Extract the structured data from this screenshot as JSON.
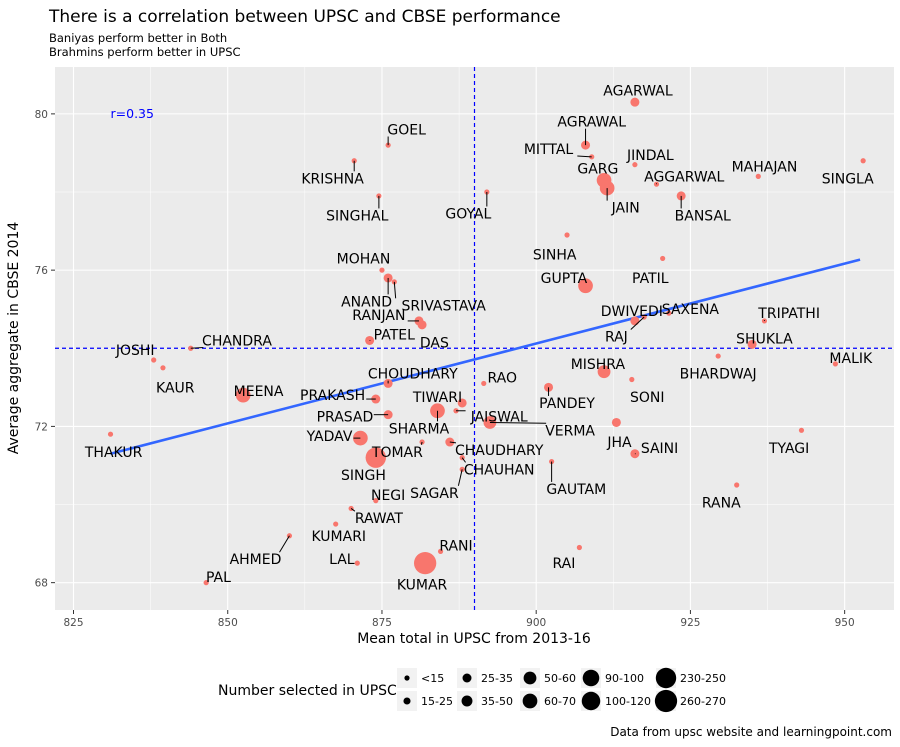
{
  "chart_data": {
    "type": "scatter",
    "title": "There is a correlation between UPSC and CBSE performance",
    "subtitle_lines": [
      "Baniyas perform better in Both",
      "Brahmins perform better in UPSC"
    ],
    "xlabel": "Mean total in UPSC from 2013-16",
    "ylabel": "Average aggregate in CBSE 2014",
    "xlim": [
      822,
      958
    ],
    "ylim": [
      67.3,
      81.2
    ],
    "xticks": [
      825,
      850,
      875,
      900,
      925,
      950
    ],
    "yticks": [
      68,
      72,
      76,
      80
    ],
    "x_ref_line": 890,
    "y_ref_line": 74.0,
    "correlation_label": "r=0.35",
    "trend_line": {
      "x": [
        831,
        952.5
      ],
      "y": [
        71.3,
        76.27
      ]
    },
    "colors": {
      "point": "#f8766d",
      "trend": "#3366ff",
      "ref": "#0000ff",
      "panel": "#ebebeb",
      "grid": "#ffffff",
      "r_label": "#0000ff"
    },
    "legend": {
      "title": "Number selected in UPSC",
      "sizes": [
        {
          "label": "<15",
          "size": 1
        },
        {
          "label": "15-25",
          "size": 2
        },
        {
          "label": "25-35",
          "size": 3
        },
        {
          "label": "35-50",
          "size": 4
        },
        {
          "label": "50-60",
          "size": 5
        },
        {
          "label": "60-70",
          "size": 6
        },
        {
          "label": "90-100",
          "size": 7
        },
        {
          "label": "100-120",
          "size": 8
        },
        {
          "label": "230-250",
          "size": 9
        },
        {
          "label": "260-270",
          "size": 10
        }
      ]
    },
    "points": [
      {
        "name": "AGARWAL",
        "x": 916,
        "y": 80.3,
        "size": 3,
        "lx": 916.5,
        "ly": 80.6
      },
      {
        "name": "AGRAWAL",
        "x": 908,
        "y": 79.2,
        "size": 3,
        "lx": 909,
        "ly": 79.8
      },
      {
        "name": "MITTAL",
        "x": 909,
        "y": 78.9,
        "size": 1,
        "lx": 902,
        "ly": 79.1
      },
      {
        "name": "GOEL",
        "x": 876,
        "y": 79.2,
        "size": 1,
        "lx": 879,
        "ly": 79.6
      },
      {
        "name": "JINDAL",
        "x": 916,
        "y": 78.7,
        "size": 1,
        "lx": 918.5,
        "ly": 78.95
      },
      {
        "name": "KRISHNA",
        "x": 870.5,
        "y": 78.8,
        "size": 1,
        "lx": 867,
        "ly": 78.35
      },
      {
        "name": "GARG",
        "x": 911,
        "y": 78.3,
        "size": 6,
        "lx": 910,
        "ly": 78.6
      },
      {
        "name": "AGGARWAL",
        "x": 919.5,
        "y": 78.2,
        "size": 1,
        "lx": 924,
        "ly": 78.4
      },
      {
        "name": "MAHAJAN",
        "x": 936,
        "y": 78.4,
        "size": 1,
        "lx": 937,
        "ly": 78.65
      },
      {
        "name": "SINGLA",
        "x": 953,
        "y": 78.8,
        "size": 1,
        "lx": 950.5,
        "ly": 78.35
      },
      {
        "name": "JAIN",
        "x": 911.5,
        "y": 78.1,
        "size": 6,
        "lx": 914.5,
        "ly": 77.6
      },
      {
        "name": "SINGHAL",
        "x": 874.5,
        "y": 77.9,
        "size": 1,
        "lx": 871,
        "ly": 77.4
      },
      {
        "name": "GOYAL",
        "x": 892,
        "y": 78.0,
        "size": 1,
        "lx": 889,
        "ly": 77.45
      },
      {
        "name": "BANSAL",
        "x": 923.5,
        "y": 77.9,
        "size": 3,
        "lx": 927,
        "ly": 77.4
      },
      {
        "name": "SINHA",
        "x": 905,
        "y": 76.9,
        "size": 1,
        "lx": 903,
        "ly": 76.4
      },
      {
        "name": "PATIL",
        "x": 920.5,
        "y": 76.3,
        "size": 1,
        "lx": 918.5,
        "ly": 75.8
      },
      {
        "name": "MOHAN",
        "x": 875,
        "y": 76.0,
        "size": 1,
        "lx": 872,
        "ly": 76.3
      },
      {
        "name": "ANAND",
        "x": 876,
        "y": 75.8,
        "size": 3,
        "lx": 872.5,
        "ly": 75.2
      },
      {
        "name": "SRIVASTAVA",
        "x": 877,
        "y": 75.7,
        "size": 1,
        "lx": 885,
        "ly": 75.1
      },
      {
        "name": "GUPTA",
        "x": 908,
        "y": 75.6,
        "size": 6,
        "lx": 904.5,
        "ly": 75.8
      },
      {
        "name": "DWIVEDI",
        "x": 916,
        "y": 74.7,
        "size": 3,
        "lx": 915.5,
        "ly": 74.95
      },
      {
        "name": "SAXENA",
        "x": 921.5,
        "y": 74.9,
        "size": 1,
        "lx": 925,
        "ly": 75.0
      },
      {
        "name": "RANJAN",
        "x": 881,
        "y": 74.7,
        "size": 3,
        "lx": 874.5,
        "ly": 74.85
      },
      {
        "name": "PATEL",
        "x": 873,
        "y": 74.2,
        "size": 3,
        "lx": 877,
        "ly": 74.35
      },
      {
        "name": "DAS",
        "x": 881.5,
        "y": 74.6,
        "size": 3,
        "lx": 883.5,
        "ly": 74.15
      },
      {
        "name": "RAJ",
        "x": 917.5,
        "y": 74.8,
        "size": 1,
        "lx": 913,
        "ly": 74.3
      },
      {
        "name": "TRIPATHI",
        "x": 937,
        "y": 74.7,
        "size": 1,
        "lx": 941,
        "ly": 74.9
      },
      {
        "name": "CHANDRA",
        "x": 844,
        "y": 74.0,
        "size": 1,
        "lx": 851.5,
        "ly": 74.2
      },
      {
        "name": "SHUKLA",
        "x": 935,
        "y": 74.1,
        "size": 3,
        "lx": 937,
        "ly": 74.25
      },
      {
        "name": "JOSHI",
        "x": 838,
        "y": 73.7,
        "size": 1,
        "lx": 835,
        "ly": 73.95
      },
      {
        "name": "KAUR",
        "x": 839.5,
        "y": 73.5,
        "size": 1,
        "lx": 841.5,
        "ly": 73.0
      },
      {
        "name": "BHARDWAJ",
        "x": 929.5,
        "y": 73.8,
        "size": 1,
        "lx": 929.5,
        "ly": 73.35
      },
      {
        "name": "MALIK",
        "x": 948.5,
        "y": 73.6,
        "size": 1,
        "lx": 951,
        "ly": 73.75
      },
      {
        "name": "MISHRA",
        "x": 911,
        "y": 73.4,
        "size": 5,
        "lx": 910,
        "ly": 73.6
      },
      {
        "name": "CHOUDHARY",
        "x": 876,
        "y": 73.1,
        "size": 3,
        "lx": 880,
        "ly": 73.35
      },
      {
        "name": "RAO",
        "x": 891.5,
        "y": 73.1,
        "size": 1,
        "lx": 894.5,
        "ly": 73.25
      },
      {
        "name": "SONI",
        "x": 915.5,
        "y": 73.2,
        "size": 1,
        "lx": 918,
        "ly": 72.75
      },
      {
        "name": "MEENA",
        "x": 852.5,
        "y": 72.8,
        "size": 6,
        "lx": 855,
        "ly": 72.9
      },
      {
        "name": "PRAKASH",
        "x": 874,
        "y": 72.7,
        "size": 3,
        "lx": 867,
        "ly": 72.8
      },
      {
        "name": "TIWARI",
        "x": 888,
        "y": 72.6,
        "size": 3,
        "lx": 884,
        "ly": 72.75
      },
      {
        "name": "PANDEY",
        "x": 902,
        "y": 73.0,
        "size": 3,
        "lx": 905,
        "ly": 72.6
      },
      {
        "name": "PRASAD",
        "x": 876,
        "y": 72.3,
        "size": 3,
        "lx": 869,
        "ly": 72.25
      },
      {
        "name": "SHARMA",
        "x": 884,
        "y": 72.4,
        "size": 6,
        "lx": 881,
        "ly": 71.95
      },
      {
        "name": "JAISWAL",
        "x": 887,
        "y": 72.4,
        "size": 1,
        "lx": 894,
        "ly": 72.25
      },
      {
        "name": "VERMA",
        "x": 892.5,
        "y": 72.1,
        "size": 5,
        "lx": 905.5,
        "ly": 71.9
      },
      {
        "name": "JHA",
        "x": 913,
        "y": 72.1,
        "size": 3,
        "lx": 913.5,
        "ly": 71.6
      },
      {
        "name": "SAINI",
        "x": 916,
        "y": 71.3,
        "size": 3,
        "lx": 920,
        "ly": 71.45
      },
      {
        "name": "TYAGI",
        "x": 943,
        "y": 71.9,
        "size": 1,
        "lx": 941,
        "ly": 71.45
      },
      {
        "name": "THAKUR",
        "x": 831,
        "y": 71.8,
        "size": 1,
        "lx": 831.5,
        "ly": 71.35
      },
      {
        "name": "YADAV",
        "x": 871.5,
        "y": 71.7,
        "size": 6,
        "lx": 866.5,
        "ly": 71.75
      },
      {
        "name": "TOMAR",
        "x": 881.5,
        "y": 71.6,
        "size": 1,
        "lx": 877.5,
        "ly": 71.35
      },
      {
        "name": "CHAUDHARY",
        "x": 886,
        "y": 71.6,
        "size": 3,
        "lx": 894,
        "ly": 71.4
      },
      {
        "name": "SINGH",
        "x": 874,
        "y": 71.2,
        "size": 9,
        "lx": 872,
        "ly": 70.75
      },
      {
        "name": "CHAUHAN",
        "x": 888,
        "y": 71.2,
        "size": 1,
        "lx": 894,
        "ly": 70.9
      },
      {
        "name": "GAUTAM",
        "x": 902.5,
        "y": 71.1,
        "size": 1,
        "lx": 906.5,
        "ly": 70.4
      },
      {
        "name": "SAGAR",
        "x": 888,
        "y": 70.9,
        "size": 1,
        "lx": 883.5,
        "ly": 70.3
      },
      {
        "name": "RANA",
        "x": 932.5,
        "y": 70.5,
        "size": 1,
        "lx": 930,
        "ly": 70.05
      },
      {
        "name": "NEGI",
        "x": 874,
        "y": 70.1,
        "size": 1,
        "lx": 876,
        "ly": 70.25
      },
      {
        "name": "RAWAT",
        "x": 870,
        "y": 69.9,
        "size": 1,
        "lx": 874.5,
        "ly": 69.65
      },
      {
        "name": "KUMARI",
        "x": 867.5,
        "y": 69.5,
        "size": 1,
        "lx": 868,
        "ly": 69.2
      },
      {
        "name": "AHMED",
        "x": 860,
        "y": 69.2,
        "size": 1,
        "lx": 854.5,
        "ly": 68.6
      },
      {
        "name": "RANI",
        "x": 884.5,
        "y": 68.8,
        "size": 1,
        "lx": 887,
        "ly": 68.95
      },
      {
        "name": "RAI",
        "x": 907,
        "y": 68.9,
        "size": 1,
        "lx": 904.5,
        "ly": 68.5
      },
      {
        "name": "LAL",
        "x": 871,
        "y": 68.5,
        "size": 1,
        "lx": 868.5,
        "ly": 68.6
      },
      {
        "name": "KUMAR",
        "x": 882,
        "y": 68.5,
        "size": 10,
        "lx": 881.5,
        "ly": 67.95
      },
      {
        "name": "PAL",
        "x": 846.5,
        "y": 68.0,
        "size": 1,
        "lx": 848.5,
        "ly": 68.15
      }
    ],
    "caption": "Data from upsc website and learningpoint.com"
  }
}
